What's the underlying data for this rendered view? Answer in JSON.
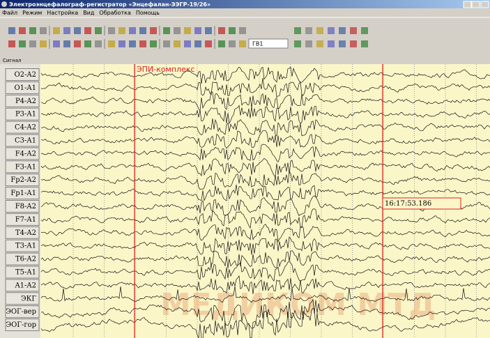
{
  "window": {
    "title": "Электроэнцефалограф-регистратор «Энцефалан-ЭЭГР-19/26»"
  },
  "menu": [
    "Файл",
    "Режим",
    "Настройка",
    "Вид",
    "Обработка",
    "Помощь"
  ],
  "toolbar": {
    "montage": "ГВ1"
  },
  "panel": {
    "header": "Сигнал",
    "channels": [
      "O2-A2",
      "O1-A1",
      "P4-A2",
      "P3-A1",
      "C4-A2",
      "C3-A1",
      "F4-A2",
      "F3-A1",
      "Fp2-A2",
      "Fp1-A1",
      "F8-A2",
      "F7-A1",
      "T4-A2",
      "T3-A1",
      "T6-A2",
      "T5-A1",
      "A1-A2",
      "ЭКГ",
      "ЭОГ-вер",
      "ЭОГ-гор"
    ],
    "annotation": "ЭПИ-комплекс",
    "time_marker": "16:17:53.186",
    "watermark": "МЕДИКОМ МТД"
  }
}
